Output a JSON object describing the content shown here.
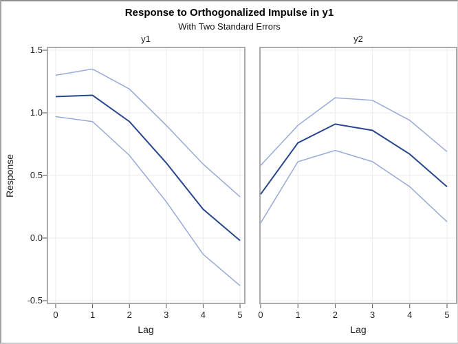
{
  "chart_data": {
    "type": "line",
    "title": "Response to Orthogonalized Impulse in y1",
    "subtitle": "With Two Standard Errors",
    "xlabel": "Lag",
    "ylabel": "Response",
    "x": [
      0,
      1,
      2,
      3,
      4,
      5
    ],
    "xtick_labels": [
      "0",
      "1",
      "2",
      "3",
      "4",
      "5"
    ],
    "ylim": [
      -0.5,
      1.5
    ],
    "yticks": [
      {
        "label": "1.5",
        "value": 1.5
      },
      {
        "label": "1.0",
        "value": 1.0
      },
      {
        "label": "0.5",
        "value": 0.5
      },
      {
        "label": "0.0",
        "value": 0.0
      },
      {
        "label": "-0.5",
        "value": -0.5
      }
    ],
    "grid": true,
    "legend": "none",
    "panels": [
      {
        "label": "y1",
        "series": [
          {
            "name": "upper 2 standard errors",
            "role": "band",
            "values": [
              1.3,
              1.35,
              1.19,
              0.9,
              0.59,
              0.33
            ]
          },
          {
            "name": "impulse response",
            "role": "center",
            "values": [
              1.13,
              1.14,
              0.93,
              0.6,
              0.23,
              -0.02
            ]
          },
          {
            "name": "lower 2 standard errors",
            "role": "band",
            "values": [
              0.97,
              0.93,
              0.66,
              0.29,
              -0.13,
              -0.38
            ]
          }
        ]
      },
      {
        "label": "y2",
        "series": [
          {
            "name": "upper 2 standard errors",
            "role": "band",
            "values": [
              0.58,
              0.9,
              1.12,
              1.1,
              0.94,
              0.69
            ]
          },
          {
            "name": "impulse response",
            "role": "center",
            "values": [
              0.35,
              0.76,
              0.91,
              0.86,
              0.67,
              0.41
            ]
          },
          {
            "name": "lower 2 standard errors",
            "role": "band",
            "values": [
              0.12,
              0.61,
              0.7,
              0.61,
              0.41,
              0.13
            ]
          }
        ]
      }
    ]
  },
  "colors": {
    "center_line": "#26458c",
    "band_line": "#98a9d7",
    "gridline": "#ebebeb",
    "frame": "#ababab",
    "tick_mark": "#4d4d4d",
    "label_text": "#1c1c1c",
    "title_text": "#000000",
    "page_border": "#8f8f8f",
    "background": "#ffffff"
  }
}
